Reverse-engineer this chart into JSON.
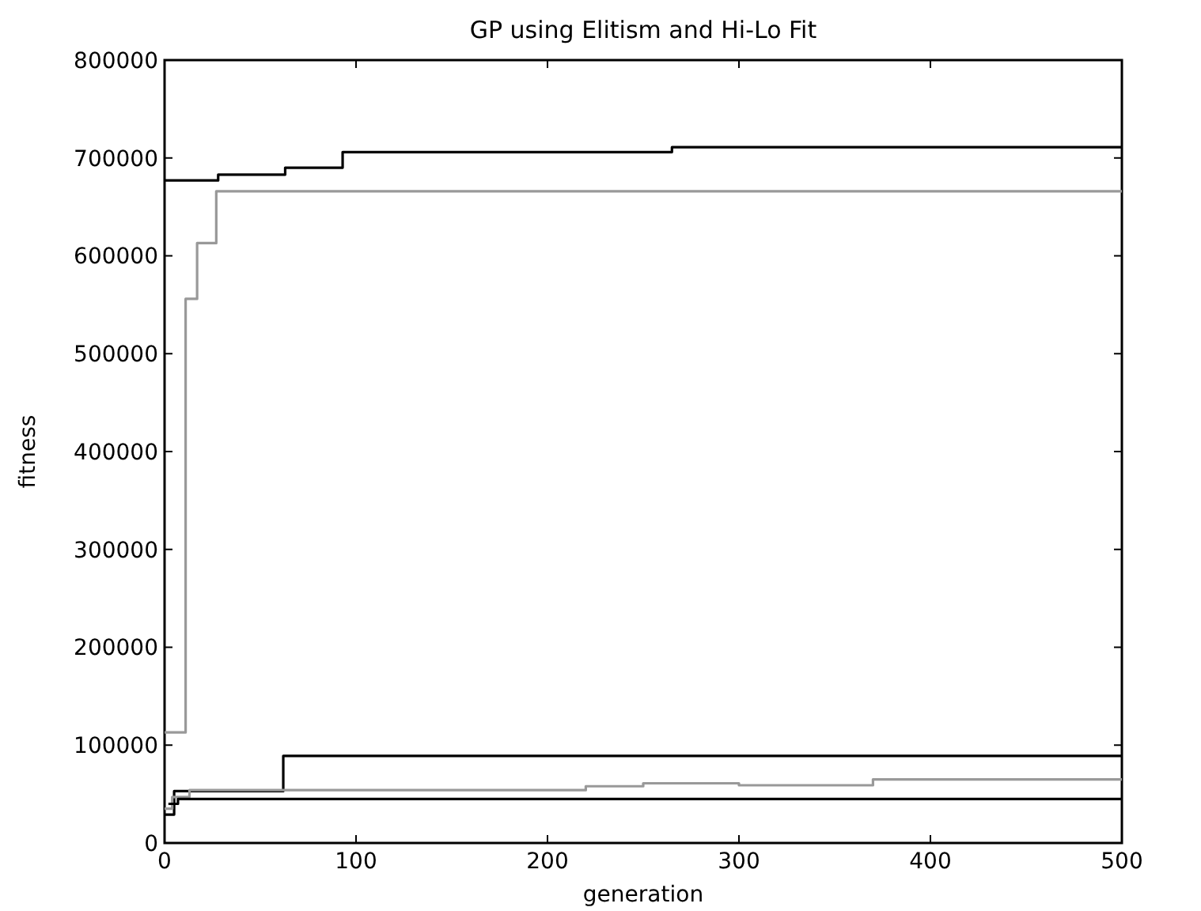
{
  "chart_data": {
    "type": "step",
    "title": "GP using Elitism and Hi-Lo Fit",
    "xlabel": "generation",
    "ylabel": "fitness",
    "xlim": [
      0,
      500
    ],
    "ylim": [
      0,
      800000
    ],
    "xticks": [
      0,
      100,
      200,
      300,
      400,
      500
    ],
    "yticks": [
      0,
      100000,
      200000,
      300000,
      400000,
      500000,
      600000,
      700000,
      800000
    ],
    "grid": false,
    "series": [
      {
        "color": "#000000",
        "x": [
          0,
          28,
          63,
          93,
          265,
          500
        ],
        "values": [
          677000,
          683000,
          690000,
          706000,
          711000,
          711000
        ]
      },
      {
        "color": "#999999",
        "x": [
          0,
          11,
          17,
          27,
          500
        ],
        "values": [
          113000,
          556000,
          613000,
          666000,
          666000
        ]
      },
      {
        "color": "#000000",
        "x": [
          0,
          5,
          62,
          500
        ],
        "values": [
          29000,
          53000,
          89000,
          89000
        ]
      },
      {
        "color": "#999999",
        "x": [
          0,
          4,
          13,
          220,
          250,
          300,
          370,
          500
        ],
        "values": [
          35000,
          47000,
          54000,
          58000,
          61000,
          59000,
          65000,
          65000
        ]
      },
      {
        "color": "#000000",
        "x": [
          2,
          7,
          500
        ],
        "values": [
          40000,
          45000,
          45000
        ]
      }
    ]
  }
}
